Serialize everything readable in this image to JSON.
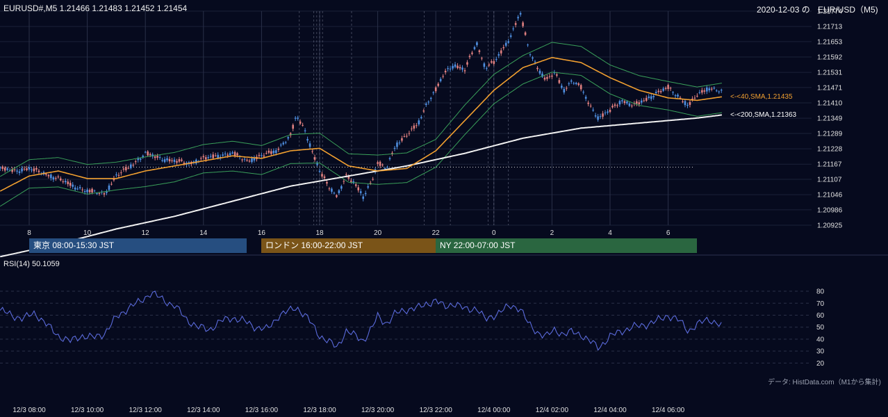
{
  "header": {
    "symbol_info": "EURUSD#,M5 1.21466 1.21483 1.21452 1.21454",
    "date_overlay": "2020-12-03 の",
    "right_title": "EUR/USD（M5)"
  },
  "sessions": [
    {
      "label": "東京 08:00-15:30 JST",
      "color": "#264e80"
    },
    {
      "label": "ロンドン 16:00-22:00 JST",
      "color": "#7a5418"
    },
    {
      "label": "NY 22:00-07:00 JST",
      "color": "#2a6640"
    }
  ],
  "rsi_label": "RSI(14) 50.1059",
  "credit": "データ: HistData.com（M1から集計)",
  "colors": {
    "background": "#060a1e",
    "bull": "#4f8fe0",
    "bear": "#e08080",
    "sma40": "#f2a030",
    "sma200": "#f2f2f2",
    "bollinger": "#3aa05a",
    "rsi": "#5b6bdc"
  },
  "chart_data": [
    {
      "type": "candlestick",
      "title": "EURUSD#,M5",
      "price_ticks": [
        "1.21774",
        "1.21713",
        "1.21653",
        "1.21592",
        "1.21531",
        "1.21471",
        "1.21410",
        "1.21349",
        "1.21289",
        "1.21228",
        "1.21167",
        "1.21107",
        "1.21046",
        "1.20986",
        "1.20925"
      ],
      "ylim": [
        1.20925,
        1.21774
      ],
      "x_hour_labels": [
        "8",
        "10",
        "12",
        "14",
        "16",
        "18",
        "20",
        "22",
        "0",
        "2",
        "4",
        "6"
      ],
      "x_bottom_labels": [
        "12/3 08:00",
        "12/3 10:00",
        "12/3 12:00",
        "12/3 14:00",
        "12/3 16:00",
        "12/3 18:00",
        "12/3 20:00",
        "12/3 22:00",
        "12/4 00:00",
        "12/4 02:00",
        "12/4 04:00",
        "12/4 06:00"
      ],
      "time_range": [
        "2020-12-03 07:00 JST",
        "2020-12-04 06:55 JST"
      ],
      "last_close": 1.21454,
      "reference_line": 1.21155,
      "price_path": [
        [
          7.0,
          1.2115
        ],
        [
          7.5,
          1.2114
        ],
        [
          8.0,
          1.2115
        ],
        [
          8.5,
          1.2113
        ],
        [
          9.0,
          1.2111
        ],
        [
          9.5,
          1.2108
        ],
        [
          10.0,
          1.2106
        ],
        [
          10.6,
          1.2105
        ],
        [
          11.0,
          1.2112
        ],
        [
          11.5,
          1.2116
        ],
        [
          12.0,
          1.2121
        ],
        [
          12.5,
          1.2119
        ],
        [
          13.0,
          1.2118
        ],
        [
          13.5,
          1.2117
        ],
        [
          14.0,
          1.2119
        ],
        [
          14.5,
          1.212
        ],
        [
          15.0,
          1.2121
        ],
        [
          15.5,
          1.2118
        ],
        [
          16.0,
          1.212
        ],
        [
          16.5,
          1.2122
        ],
        [
          17.0,
          1.2128
        ],
        [
          17.2,
          1.2136
        ],
        [
          17.5,
          1.213
        ],
        [
          17.8,
          1.212
        ],
        [
          18.0,
          1.2114
        ],
        [
          18.3,
          1.2108
        ],
        [
          18.6,
          1.2104
        ],
        [
          18.9,
          1.2112
        ],
        [
          19.2,
          1.2109
        ],
        [
          19.5,
          1.2104
        ],
        [
          19.8,
          1.211
        ],
        [
          20.0,
          1.2117
        ],
        [
          20.3,
          1.2115
        ],
        [
          20.6,
          1.2124
        ],
        [
          21.0,
          1.2128
        ],
        [
          21.4,
          1.2133
        ],
        [
          21.7,
          1.2141
        ],
        [
          22.0,
          1.2146
        ],
        [
          22.3,
          1.2153
        ],
        [
          22.6,
          1.2156
        ],
        [
          23.0,
          1.2154
        ],
        [
          23.4,
          1.2165
        ],
        [
          23.7,
          1.2155
        ],
        [
          24.0,
          1.2157
        ],
        [
          24.3,
          1.2162
        ],
        [
          24.6,
          1.2168
        ],
        [
          24.9,
          1.2177
        ],
        [
          25.2,
          1.2162
        ],
        [
          25.5,
          1.2155
        ],
        [
          25.8,
          1.215
        ],
        [
          26.1,
          1.2153
        ],
        [
          26.4,
          1.2146
        ],
        [
          26.7,
          1.215
        ],
        [
          27.0,
          1.2147
        ],
        [
          27.3,
          1.214
        ],
        [
          27.6,
          1.2135
        ],
        [
          28.0,
          1.2138
        ],
        [
          28.4,
          1.2142
        ],
        [
          28.8,
          1.214
        ],
        [
          29.2,
          1.2142
        ],
        [
          29.6,
          1.2145
        ],
        [
          30.0,
          1.2147
        ],
        [
          30.4,
          1.2143
        ],
        [
          30.7,
          1.214
        ],
        [
          31.0,
          1.2144
        ],
        [
          31.4,
          1.2147
        ],
        [
          31.9,
          1.21454
        ]
      ],
      "overlays": [
        {
          "name": "<-<40,SMA,1.21435",
          "value": 1.21435,
          "path": [
            [
              7.0,
              1.2106
            ],
            [
              8.0,
              1.2112
            ],
            [
              9.0,
              1.2114
            ],
            [
              10.0,
              1.2111
            ],
            [
              11.0,
              1.2111
            ],
            [
              12.0,
              1.2114
            ],
            [
              13.0,
              1.2116
            ],
            [
              14.0,
              1.2118
            ],
            [
              15.0,
              1.212
            ],
            [
              16.0,
              1.2119
            ],
            [
              17.0,
              1.2122
            ],
            [
              18.0,
              1.2123
            ],
            [
              19.0,
              1.2116
            ],
            [
              20.0,
              1.2114
            ],
            [
              21.0,
              1.2115
            ],
            [
              22.0,
              1.2122
            ],
            [
              23.0,
              1.2134
            ],
            [
              24.0,
              1.2146
            ],
            [
              25.0,
              1.2155
            ],
            [
              26.0,
              1.2159
            ],
            [
              27.0,
              1.2157
            ],
            [
              28.0,
              1.2151
            ],
            [
              29.0,
              1.2146
            ],
            [
              30.0,
              1.2143
            ],
            [
              31.0,
              1.2142
            ],
            [
              31.9,
              1.21435
            ]
          ]
        },
        {
          "name": "<-<200,SMA,1.21363",
          "value": 1.21363,
          "path": [
            [
              7.0,
              1.208
            ],
            [
              9.0,
              1.2085
            ],
            [
              11.0,
              1.2091
            ],
            [
              13.0,
              1.2096
            ],
            [
              15.0,
              1.2102
            ],
            [
              17.0,
              1.2108
            ],
            [
              19.0,
              1.2112
            ],
            [
              21.0,
              1.2116
            ],
            [
              23.0,
              1.2121
            ],
            [
              25.0,
              1.2127
            ],
            [
              27.0,
              1.2131
            ],
            [
              29.0,
              1.2133
            ],
            [
              31.0,
              1.2135
            ],
            [
              31.9,
              1.21363
            ]
          ]
        }
      ],
      "bollinger": {
        "width": 0.00045
      }
    },
    {
      "type": "line",
      "title": "RSI(14) 50.1059",
      "yticks": [
        20,
        30,
        40,
        50,
        60,
        70,
        80
      ],
      "ylim": [
        15,
        87
      ],
      "last_value": 50.1059,
      "path": [
        [
          7.0,
          64
        ],
        [
          7.4,
          60
        ],
        [
          7.8,
          57
        ],
        [
          8.2,
          62
        ],
        [
          8.6,
          52
        ],
        [
          9.0,
          43
        ],
        [
          9.4,
          38
        ],
        [
          9.8,
          43
        ],
        [
          10.2,
          41
        ],
        [
          10.6,
          45
        ],
        [
          11.0,
          58
        ],
        [
          11.4,
          66
        ],
        [
          11.8,
          71
        ],
        [
          12.2,
          79
        ],
        [
          12.6,
          73
        ],
        [
          13.0,
          68
        ],
        [
          13.4,
          57
        ],
        [
          13.8,
          50
        ],
        [
          14.2,
          48
        ],
        [
          14.6,
          55
        ],
        [
          15.0,
          58
        ],
        [
          15.4,
          55
        ],
        [
          15.8,
          50
        ],
        [
          16.2,
          48
        ],
        [
          16.6,
          60
        ],
        [
          17.0,
          64
        ],
        [
          17.2,
          67
        ],
        [
          17.6,
          57
        ],
        [
          18.0,
          43
        ],
        [
          18.3,
          38
        ],
        [
          18.6,
          33
        ],
        [
          18.9,
          47
        ],
        [
          19.2,
          43
        ],
        [
          19.5,
          39
        ],
        [
          19.8,
          49
        ],
        [
          20.0,
          59
        ],
        [
          20.3,
          53
        ],
        [
          20.6,
          61
        ],
        [
          21.0,
          65
        ],
        [
          21.4,
          66
        ],
        [
          21.7,
          70
        ],
        [
          22.0,
          72
        ],
        [
          22.3,
          67
        ],
        [
          22.6,
          70
        ],
        [
          23.0,
          65
        ],
        [
          23.4,
          66
        ],
        [
          23.7,
          56
        ],
        [
          24.0,
          60
        ],
        [
          24.3,
          64
        ],
        [
          24.6,
          68
        ],
        [
          24.9,
          66
        ],
        [
          25.2,
          52
        ],
        [
          25.5,
          46
        ],
        [
          25.8,
          42
        ],
        [
          26.1,
          48
        ],
        [
          26.4,
          44
        ],
        [
          26.7,
          46
        ],
        [
          27.0,
          44
        ],
        [
          27.3,
          38
        ],
        [
          27.6,
          33
        ],
        [
          28.0,
          42
        ],
        [
          28.4,
          47
        ],
        [
          28.8,
          50
        ],
        [
          29.2,
          52
        ],
        [
          29.6,
          55
        ],
        [
          30.0,
          60
        ],
        [
          30.4,
          55
        ],
        [
          30.7,
          47
        ],
        [
          31.0,
          52
        ],
        [
          31.4,
          57
        ],
        [
          31.9,
          50.1
        ]
      ]
    }
  ]
}
